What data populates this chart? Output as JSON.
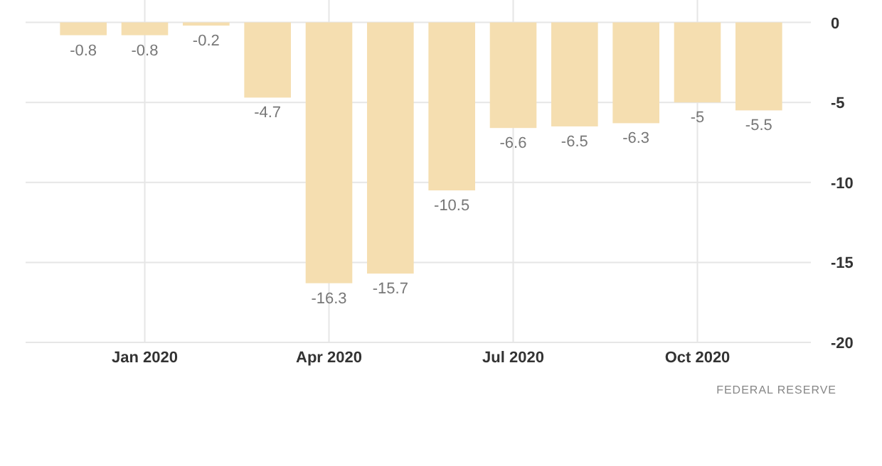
{
  "chart_data": {
    "type": "bar",
    "categories": [
      null,
      "Jan 2020",
      null,
      null,
      "Apr 2020",
      null,
      null,
      "Jul 2020",
      null,
      null,
      "Oct 2020",
      null
    ],
    "values": [
      -0.8,
      -0.8,
      -0.2,
      -4.7,
      -16.3,
      -15.7,
      -10.5,
      -6.6,
      -6.5,
      -6.3,
      -5,
      -5.5
    ],
    "color": "#f5deb0",
    "ylim": [
      -20,
      1.4
    ],
    "yticks": [
      0,
      -5,
      -10,
      -15,
      -20
    ],
    "grid": true,
    "data_labels": true,
    "annotations": [
      "FEDERAL RESERVE"
    ]
  }
}
